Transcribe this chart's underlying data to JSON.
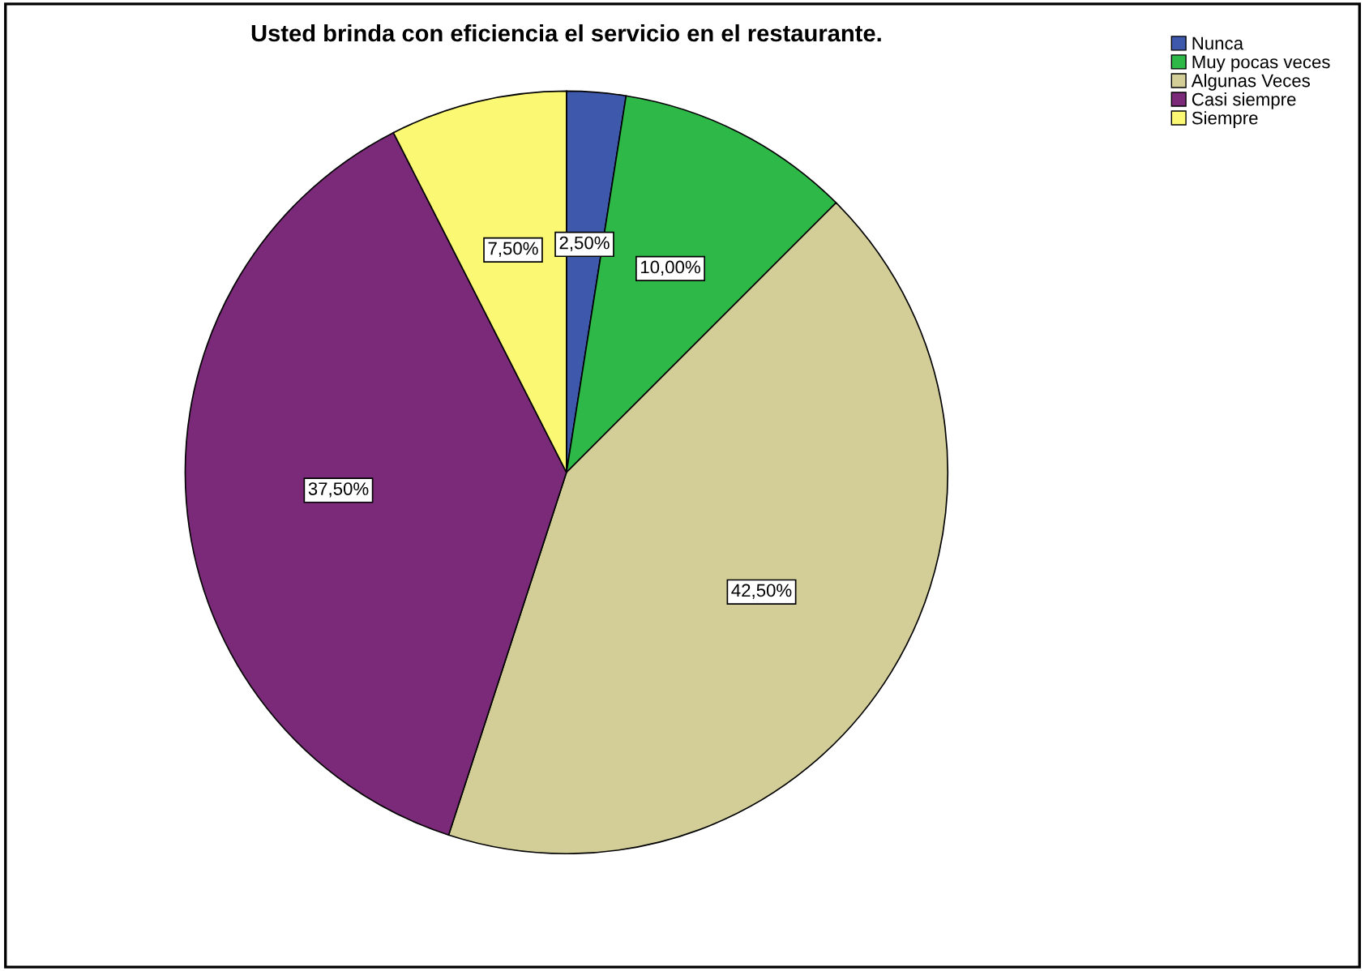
{
  "chart_data": {
    "type": "pie",
    "title": "Usted brinda con eficiencia el servicio en el restaurante.",
    "categories": [
      "Nunca",
      "Muy pocas veces",
      "Algunas Veces",
      "Casi siempre",
      "Siempre"
    ],
    "values": [
      2.5,
      10,
      42.5,
      37.5,
      7.5
    ],
    "colors": [
      "#3e58ac",
      "#2eb848",
      "#d3ce97",
      "#7b2a79",
      "#fbf873"
    ],
    "value_labels": [
      "2,50%",
      "10,00%",
      "42,50%",
      "37,50%",
      "7,50%"
    ],
    "legend": "top right"
  }
}
